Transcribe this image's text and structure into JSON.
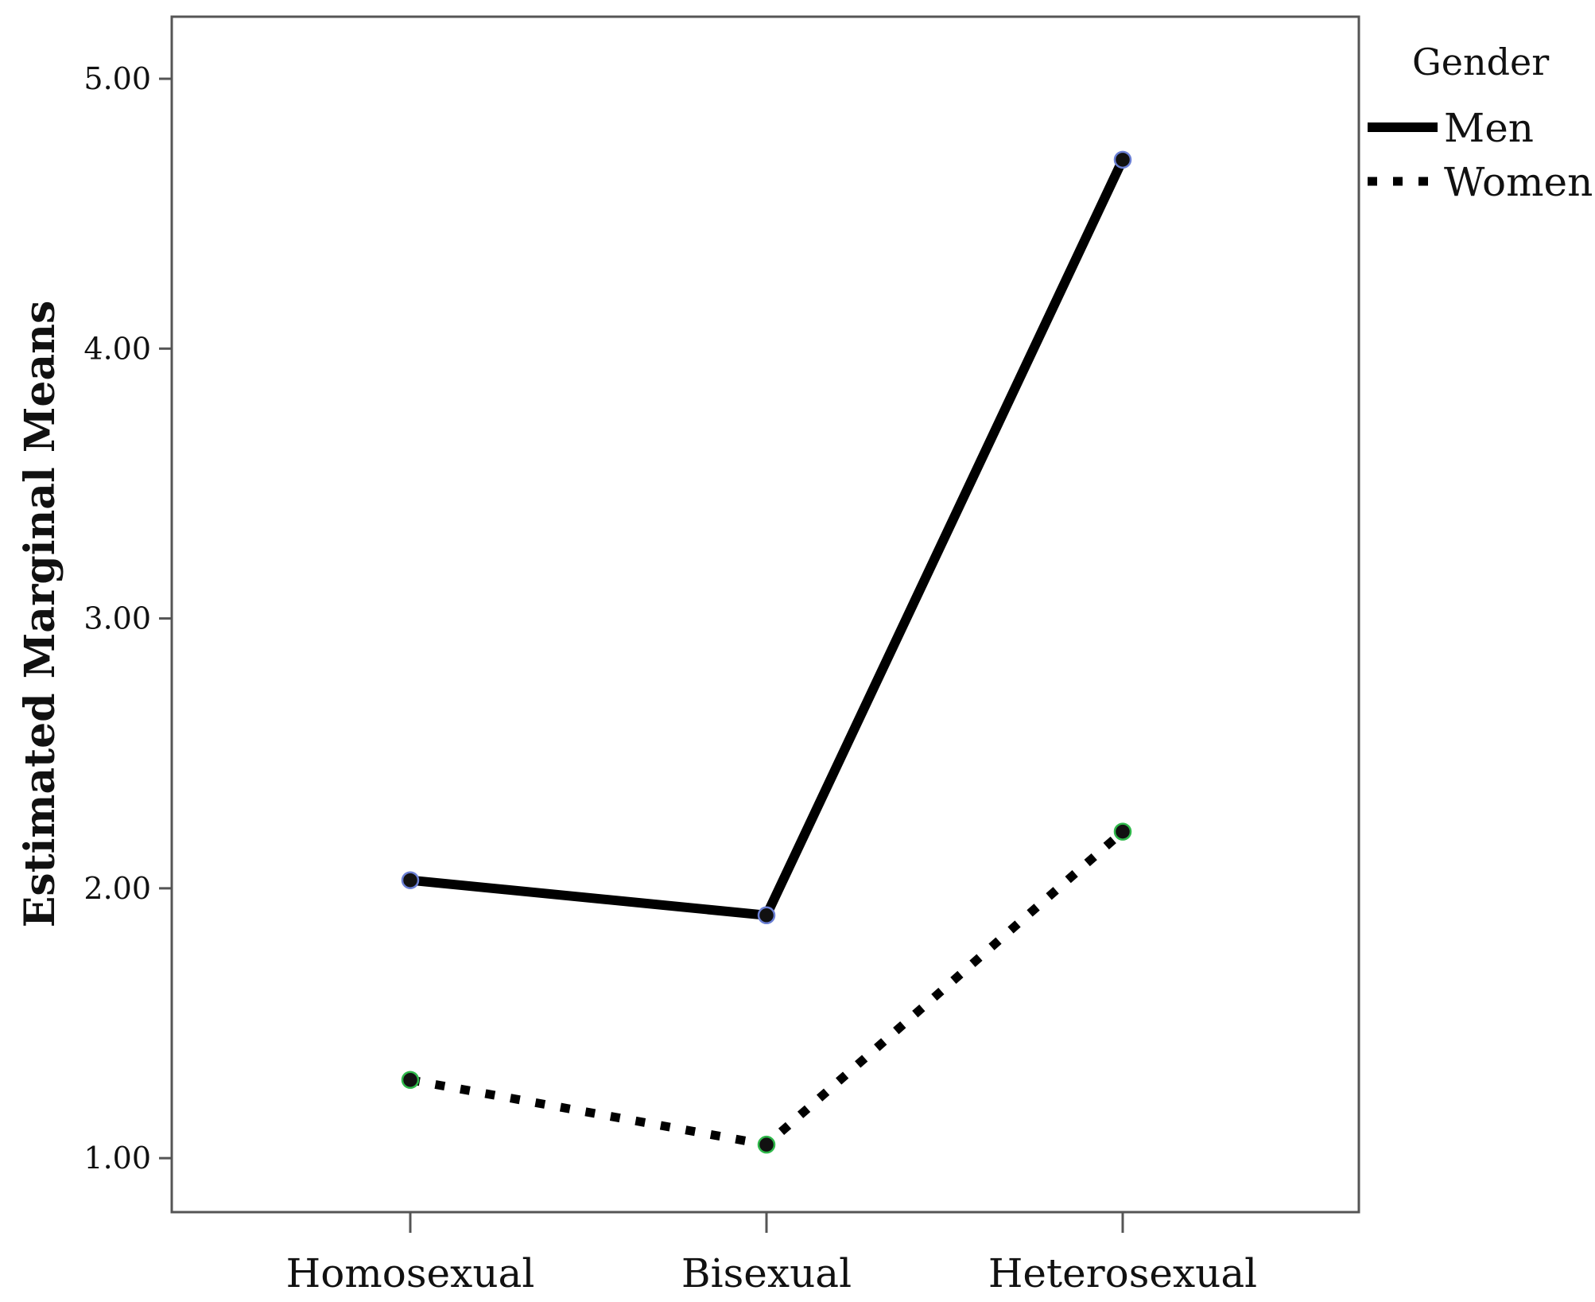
{
  "chart_data": {
    "type": "line",
    "title": "",
    "xlabel": "",
    "ylabel": "Estimated Marginal Means",
    "categories": [
      "Homosexual",
      "Bisexual",
      "Heterosexual"
    ],
    "ylim": [
      0.8,
      5.23
    ],
    "yticks": [
      1.0,
      2.0,
      3.0,
      4.0,
      5.0
    ],
    "ytick_labels": [
      "1.00",
      "2.00",
      "3.00",
      "4.00",
      "5.00"
    ],
    "grid": false,
    "legend": {
      "title": "Gender",
      "placement": "right-top"
    },
    "series": [
      {
        "name": "Men",
        "values": [
          2.03,
          1.9,
          4.7
        ],
        "line_style": "solid",
        "color": "#000000",
        "marker_edge_color": "#6a7fd4"
      },
      {
        "name": "Women",
        "values": [
          1.29,
          1.05,
          2.21
        ],
        "line_style": "dotted",
        "color": "#000000",
        "marker_edge_color": "#2fb84a"
      }
    ]
  }
}
